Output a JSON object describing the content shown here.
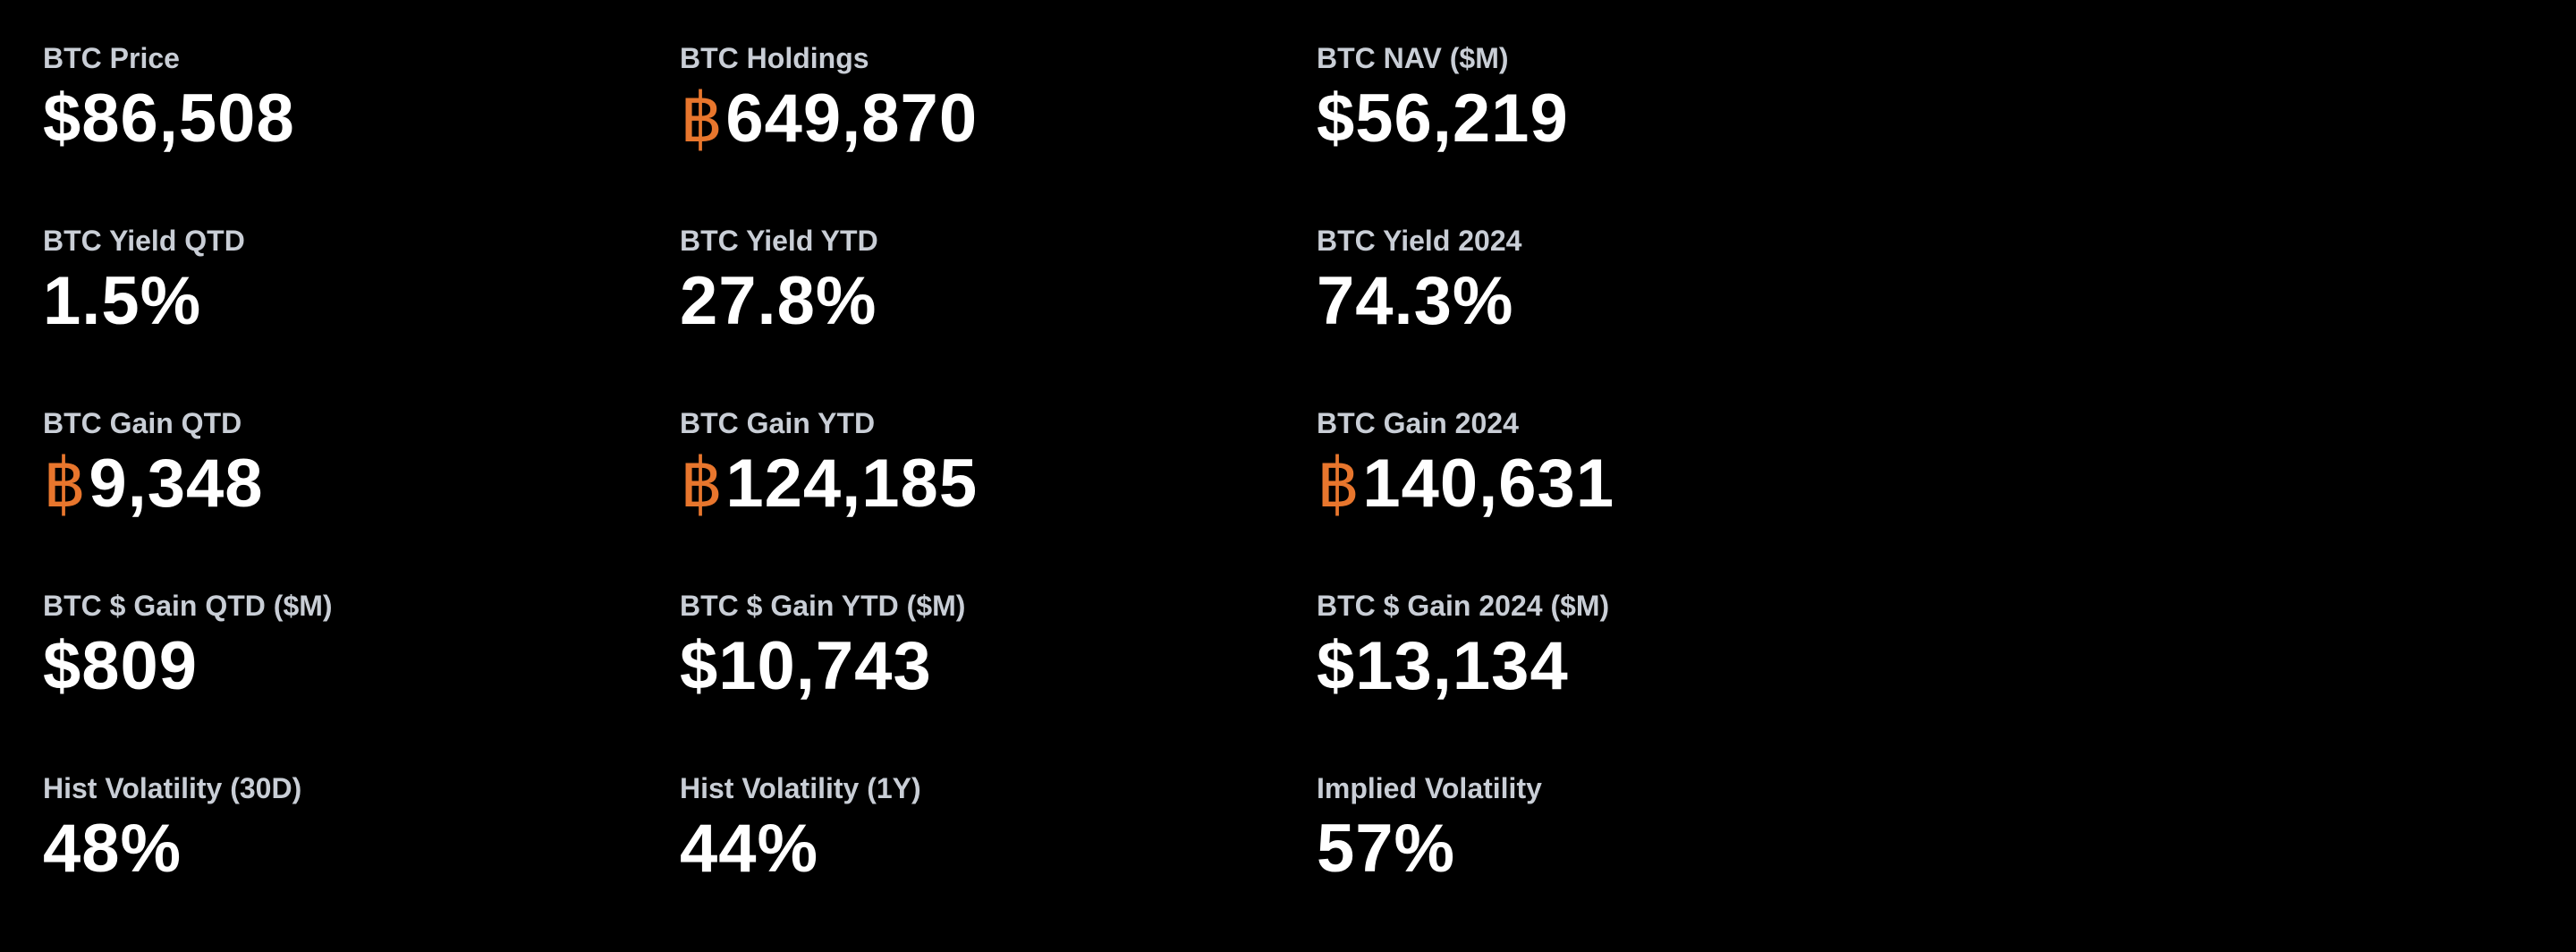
{
  "colors": {
    "background": "#000000",
    "label": "#c9ced6",
    "value": "#ffffff",
    "btc_accent": "#e8762d"
  },
  "btc_symbol": "฿",
  "rows": [
    [
      {
        "label": "BTC Price",
        "value": "$86,508"
      },
      {
        "label": "BTC Holdings",
        "value": "649,870"
      },
      {
        "label": "BTC NAV ($M)",
        "value": "$56,219"
      }
    ],
    [
      {
        "label": "BTC Yield QTD",
        "value": "1.5%"
      },
      {
        "label": "BTC Yield YTD",
        "value": "27.8%"
      },
      {
        "label": "BTC Yield 2024",
        "value": "74.3%"
      }
    ],
    [
      {
        "label": "BTC Gain QTD",
        "value": "9,348"
      },
      {
        "label": "BTC Gain YTD",
        "value": "124,185"
      },
      {
        "label": "BTC Gain 2024",
        "value": "140,631"
      }
    ],
    [
      {
        "label": "BTC $ Gain QTD ($M)",
        "value": "$809"
      },
      {
        "label": "BTC $ Gain YTD ($M)",
        "value": "$10,743"
      },
      {
        "label": "BTC $ Gain 2024 ($M)",
        "value": "$13,134"
      }
    ],
    [
      {
        "label": "Hist Volatility (30D)",
        "value": "48%"
      },
      {
        "label": "Hist Volatility (1Y)",
        "value": "44%"
      },
      {
        "label": "Implied Volatility",
        "value": "57%"
      }
    ]
  ]
}
